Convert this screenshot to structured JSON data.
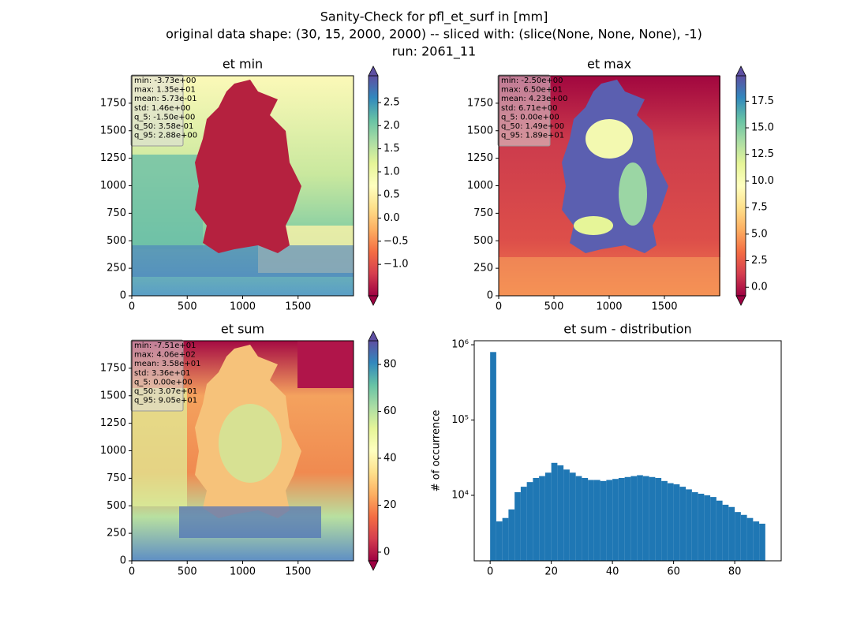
{
  "suptitle": [
    "Sanity-Check for pfl_et_surf in [mm]",
    "original data shape: (30, 15, 2000, 2000) -- sliced with: (slice(None, None, None), -1)",
    "run: 2061_11"
  ],
  "chart_data": [
    {
      "type": "heatmap",
      "title": "et min",
      "xlim": [
        0,
        2000
      ],
      "ylim": [
        0,
        2000
      ],
      "xticks": [
        0,
        500,
        1000,
        1500
      ],
      "yticks": [
        0,
        250,
        500,
        750,
        1000,
        1250,
        1500,
        1750
      ],
      "clim": [
        -1.68,
        3.08
      ],
      "cticks": [
        {
          "value": -1,
          "label": "−1.0"
        },
        {
          "value": -0.5,
          "label": "−0.5"
        },
        {
          "value": 0,
          "label": "0.0"
        },
        {
          "value": 0.5,
          "label": "0.5"
        },
        {
          "value": 1,
          "label": "1.0"
        },
        {
          "value": 1.5,
          "label": "1.5"
        },
        {
          "value": 2,
          "label": "2.0"
        },
        {
          "value": 2.5,
          "label": "2.5"
        }
      ],
      "stats": [
        "min: -3.73e+00",
        "max: 1.35e+01",
        "mean: 5.73e-01",
        "std: 1.46e+00",
        "q_5: -1.50e+00",
        "q_50: 3.58e-01",
        "q_95: 2.88e+00"
      ]
    },
    {
      "type": "heatmap",
      "title": "et max",
      "xlim": [
        0,
        2000
      ],
      "ylim": [
        0,
        2000
      ],
      "xticks": [
        0,
        500,
        1000,
        1500
      ],
      "yticks": [
        0,
        250,
        500,
        750,
        1000,
        1250,
        1500,
        1750
      ],
      "clim": [
        -0.8,
        19.9
      ],
      "cticks": [
        {
          "value": 0,
          "label": "0.0"
        },
        {
          "value": 2.5,
          "label": "2.5"
        },
        {
          "value": 5,
          "label": "5.0"
        },
        {
          "value": 7.5,
          "label": "7.5"
        },
        {
          "value": 10,
          "label": "10.0"
        },
        {
          "value": 12.5,
          "label": "12.5"
        },
        {
          "value": 15,
          "label": "15.0"
        },
        {
          "value": 17.5,
          "label": "17.5"
        }
      ],
      "stats": [
        "min: -2.50e+00",
        "max: 6.50e+01",
        "mean: 4.23e+00",
        "std: 6.71e+00",
        "q_5: 0.00e+00",
        "q_50: 1.49e+00",
        "q_95: 1.89e+01"
      ]
    },
    {
      "type": "heatmap",
      "title": "et sum",
      "xlim": [
        0,
        2000
      ],
      "ylim": [
        0,
        2000
      ],
      "xticks": [
        0,
        500,
        1000,
        1500
      ],
      "yticks": [
        0,
        250,
        500,
        750,
        1000,
        1250,
        1500,
        1750
      ],
      "clim": [
        -3.7,
        90.1
      ],
      "cticks": [
        0,
        20,
        40,
        60,
        80
      ],
      "stats": [
        "min: -7.51e+01",
        "max: 4.06e+02",
        "mean: 3.58e+01",
        "std: 3.36e+01",
        "q_5: 0.00e+00",
        "q_50: 3.07e+01",
        "q_95: 9.05e+01"
      ]
    },
    {
      "type": "histogram",
      "title": "et sum - distribution",
      "y_label": "# of occurrence",
      "color": "#1f77b4",
      "log_y": true,
      "bins": [
        0,
        2,
        4,
        6,
        8,
        10,
        12,
        14,
        16,
        18,
        20,
        22,
        24,
        26,
        28,
        30,
        32,
        34,
        36,
        38,
        40,
        42,
        44,
        46,
        48,
        50,
        52,
        54,
        56,
        58,
        60,
        62,
        64,
        66,
        68,
        70,
        72,
        74,
        76,
        78,
        80,
        82,
        84,
        86,
        88,
        90
      ],
      "values": [
        800000,
        4500,
        5000,
        6500,
        11000,
        13000,
        15000,
        17000,
        18000,
        20000,
        27000,
        25000,
        22000,
        20000,
        18000,
        17000,
        16000,
        16000,
        15500,
        16000,
        16500,
        17000,
        17500,
        18000,
        18500,
        18000,
        17500,
        17000,
        15500,
        14500,
        14000,
        13000,
        12000,
        11000,
        10500,
        10000,
        9500,
        8500,
        7500,
        7000,
        6000,
        5500,
        5000,
        4500,
        4200
      ],
      "xlim": [
        -5.2,
        95.2
      ],
      "xticks": [
        0,
        20,
        40,
        60,
        80
      ],
      "ylim": [
        1350,
        1130000
      ],
      "yticks": [
        {
          "value": 10000,
          "label": "10⁴"
        },
        {
          "value": 100000,
          "label": "10⁵"
        },
        {
          "value": 1000000,
          "label": "10⁶"
        }
      ]
    }
  ]
}
